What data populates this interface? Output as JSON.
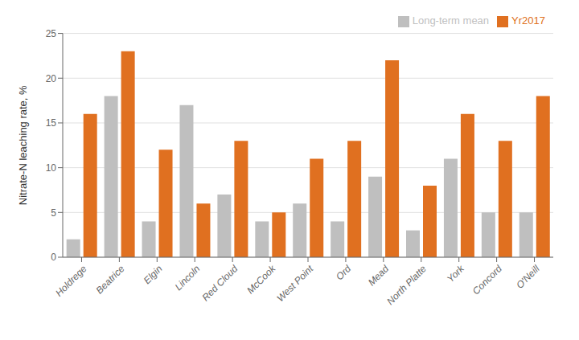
{
  "chart_data": {
    "type": "bar",
    "categories": [
      "Holdrege",
      "Beatrice",
      "Elgin",
      "Lincoln",
      "Red Cloud",
      "McCook",
      "West Point",
      "Ord",
      "Mead",
      "North Platte",
      "York",
      "Concord",
      "O'Neill"
    ],
    "series": [
      {
        "name": "Long-term mean",
        "color": "#bfbfbf",
        "values": [
          2,
          18,
          4,
          17,
          7,
          4,
          6,
          4,
          9,
          3,
          11,
          5,
          5
        ]
      },
      {
        "name": "Yr2017",
        "color": "#e07020",
        "values": [
          16,
          23,
          12,
          6,
          13,
          5,
          11,
          13,
          22,
          8,
          16,
          13,
          18
        ]
      }
    ],
    "ylabel": "Nitrate-N leaching rate, %",
    "ylim": [
      0,
      25
    ],
    "yticks": [
      0,
      5,
      10,
      15,
      20,
      25
    ],
    "grid": true,
    "legend": "upper right"
  }
}
